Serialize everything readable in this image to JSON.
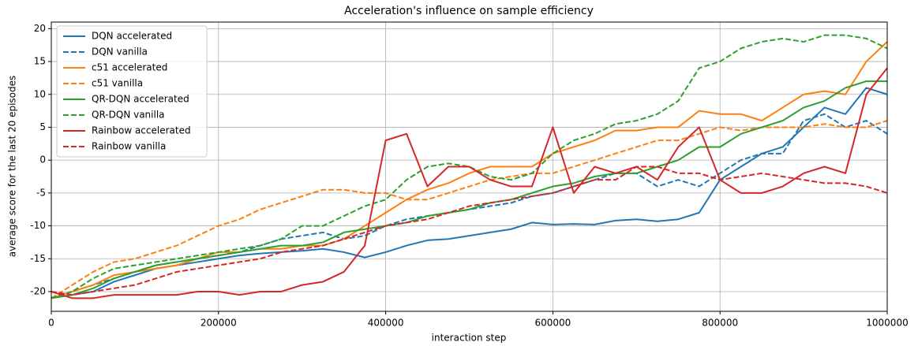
{
  "chart_data": {
    "type": "line",
    "title": "Acceleration's influence on sample efficiency",
    "x_label": "interaction step",
    "y_label": "average score for the last 20 episodes",
    "x": [
      0,
      25000,
      50000,
      75000,
      100000,
      125000,
      150000,
      175000,
      200000,
      225000,
      250000,
      275000,
      300000,
      325000,
      350000,
      375000,
      400000,
      425000,
      450000,
      475000,
      500000,
      525000,
      550000,
      575000,
      600000,
      625000,
      650000,
      675000,
      700000,
      725000,
      750000,
      775000,
      800000,
      825000,
      850000,
      875000,
      900000,
      925000,
      950000,
      975000,
      1000000
    ],
    "xlim": [
      0,
      1000000
    ],
    "xticks": [
      0,
      200000,
      400000,
      600000,
      800000,
      1000000
    ],
    "ylim": [
      -23,
      21
    ],
    "yticks": [
      -20,
      -15,
      -10,
      -5,
      0,
      5,
      10,
      15,
      20
    ],
    "grid": true,
    "legend": "upper left",
    "series": [
      {
        "name": "DQN accelerated",
        "color": "#1f77b4",
        "style": "solid",
        "values": [
          -21,
          -20.5,
          -20,
          -18.5,
          -17.5,
          -16.5,
          -16,
          -15.5,
          -15,
          -14.5,
          -14.2,
          -14,
          -13.8,
          -13.5,
          -14,
          -14.8,
          -14,
          -13,
          -12.2,
          -12,
          -11.5,
          -11,
          -10.5,
          -9.5,
          -9.8,
          -9.7,
          -9.8,
          -9.2,
          -9,
          -9.3,
          -9,
          -8,
          -3,
          -1,
          1,
          2,
          5,
          8,
          7,
          11,
          10
        ]
      },
      {
        "name": "DQN vanilla",
        "color": "#1f77b4",
        "style": "dashed",
        "values": [
          -21,
          -20,
          -19,
          -18,
          -17,
          -16,
          -15.5,
          -15,
          -14.5,
          -14,
          -13,
          -12,
          -11.5,
          -11,
          -12,
          -11.5,
          -10,
          -9,
          -8.5,
          -8,
          -7.5,
          -7,
          -6.5,
          -5.5,
          -5,
          -4,
          -3,
          -2,
          -2,
          -4,
          -3,
          -4,
          -2,
          0,
          1,
          1,
          6,
          7,
          5,
          6,
          4
        ]
      },
      {
        "name": "c51 accelerated",
        "color": "#ff7f0e",
        "style": "solid",
        "values": [
          -21,
          -20,
          -19,
          -17.5,
          -17,
          -16.5,
          -16,
          -15,
          -14,
          -14,
          -13.5,
          -13.5,
          -13,
          -13,
          -12,
          -10,
          -8,
          -6,
          -4.5,
          -3.5,
          -2,
          -1,
          -1,
          -1,
          1,
          2,
          3,
          4.5,
          4.5,
          5,
          5,
          7.5,
          7,
          7,
          6,
          8,
          10,
          10.5,
          10,
          15,
          18
        ]
      },
      {
        "name": "c51 vanilla",
        "color": "#ff7f0e",
        "style": "dashed",
        "values": [
          -21,
          -19,
          -17,
          -15.5,
          -15,
          -14,
          -13,
          -11.5,
          -10,
          -9,
          -7.5,
          -6.5,
          -5.5,
          -4.5,
          -4.5,
          -5,
          -5,
          -6,
          -6,
          -5,
          -4,
          -3,
          -2.5,
          -2,
          -2,
          -1,
          0,
          1,
          2,
          3,
          3,
          4,
          5,
          4.5,
          5,
          5,
          5,
          5.5,
          5,
          5,
          6
        ]
      },
      {
        "name": "QR-DQN accelerated",
        "color": "#2ca02c",
        "style": "solid",
        "values": [
          -21,
          -20.5,
          -19.5,
          -18,
          -17,
          -16,
          -15.5,
          -15,
          -14.5,
          -14,
          -13.5,
          -13,
          -13,
          -12.5,
          -11,
          -10.5,
          -10,
          -9.5,
          -8.5,
          -8,
          -7.5,
          -6.5,
          -6,
          -5,
          -4,
          -3.5,
          -2.5,
          -2,
          -2,
          -1,
          0,
          2,
          2,
          4,
          5,
          6,
          8,
          9,
          11,
          12,
          12
        ]
      },
      {
        "name": "QR-DQN vanilla",
        "color": "#2ca02c",
        "style": "dashed",
        "values": [
          -21,
          -20,
          -18,
          -16.5,
          -16,
          -15.5,
          -15,
          -14.5,
          -14,
          -13.5,
          -13,
          -12,
          -10,
          -10,
          -8.5,
          -7,
          -6,
          -3,
          -1,
          -0.5,
          -1,
          -2.5,
          -3,
          -2,
          1,
          3,
          4,
          5.5,
          6,
          7,
          9,
          14,
          15,
          17,
          18,
          18.5,
          18,
          19,
          19,
          18.5,
          17
        ]
      },
      {
        "name": "Rainbow accelerated",
        "color": "#d62728",
        "style": "solid",
        "values": [
          -20,
          -21,
          -21,
          -20.5,
          -20.5,
          -20.5,
          -20.5,
          -20,
          -20,
          -20.5,
          -20,
          -20,
          -19,
          -18.5,
          -17,
          -13,
          3,
          4,
          -4,
          -1,
          -1,
          -3,
          -4,
          -4,
          5,
          -5,
          -1,
          -2,
          -1,
          -3,
          2,
          5,
          -3,
          -5,
          -5,
          -4,
          -2,
          -1,
          -2,
          10,
          14
        ]
      },
      {
        "name": "Rainbow vanilla",
        "color": "#d62728",
        "style": "dashed",
        "values": [
          -20,
          -20.5,
          -20,
          -19.5,
          -19,
          -18,
          -17,
          -16.5,
          -16,
          -15.5,
          -15,
          -14,
          -13.5,
          -13,
          -12,
          -11,
          -10,
          -9.5,
          -9,
          -8,
          -7,
          -6.5,
          -6,
          -5.5,
          -5,
          -4,
          -3,
          -3,
          -1,
          -1,
          -2,
          -2,
          -3,
          -2.5,
          -2,
          -2.5,
          -3,
          -3.5,
          -3.5,
          -4,
          -5
        ]
      }
    ]
  }
}
